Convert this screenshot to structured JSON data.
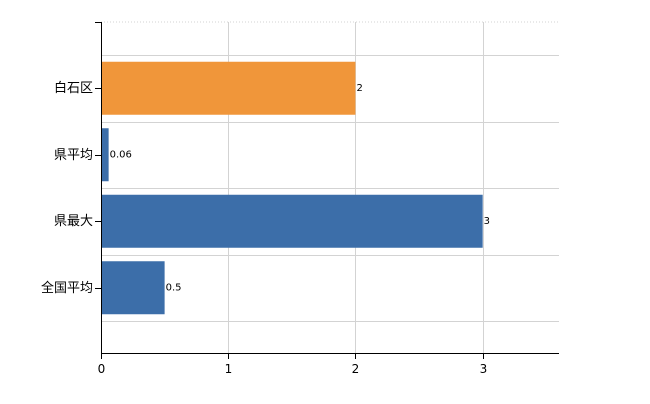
{
  "chart_data": {
    "type": "bar",
    "orientation": "horizontal",
    "categories": [
      "白石区",
      "県平均",
      "県最大",
      "全国平均"
    ],
    "values": [
      2,
      0.06,
      3,
      0.5
    ],
    "data_labels": [
      "2",
      "0.06",
      "3",
      "0.5"
    ],
    "bar_colors": [
      "#F0963A",
      "#3C6EA9",
      "#3C6EA9",
      "#3C6EA9"
    ],
    "x_ticks": [
      0,
      1,
      2,
      3
    ],
    "x_tick_labels": [
      "0",
      "1",
      "2",
      "3"
    ],
    "xlim": [
      0,
      3.6
    ],
    "grid": true,
    "grid_color": "#d3d3d3",
    "axis_color": "#000000",
    "title": "",
    "xlabel": "",
    "ylabel": ""
  }
}
